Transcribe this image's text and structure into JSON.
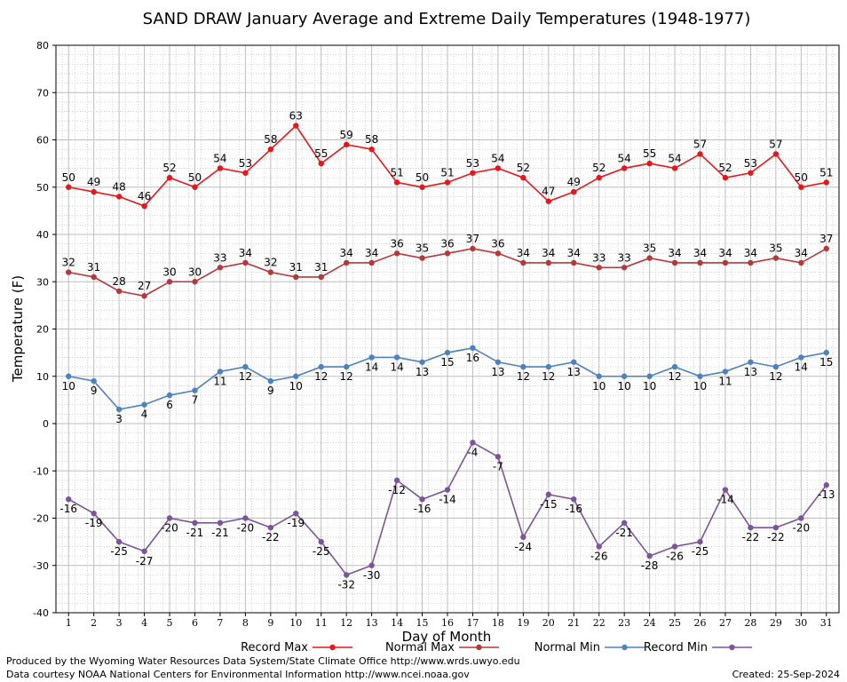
{
  "chart_data": {
    "type": "line",
    "title": "SAND DRAW January Average and Extreme Daily Temperatures (1948-1977)",
    "xlabel": "Day of Month",
    "ylabel": "Temperature (F)",
    "ylim": [
      -40,
      80
    ],
    "yticks": [
      -40,
      -30,
      -20,
      -10,
      0,
      10,
      20,
      30,
      40,
      50,
      60,
      70,
      80
    ],
    "grid": true,
    "legend_position": "bottom",
    "x": [
      1,
      2,
      3,
      4,
      5,
      6,
      7,
      8,
      9,
      10,
      11,
      12,
      13,
      14,
      15,
      16,
      17,
      18,
      19,
      20,
      21,
      22,
      23,
      24,
      25,
      26,
      27,
      28,
      29,
      30,
      31
    ],
    "series": [
      {
        "name": "Record Max",
        "color": "#e8161b",
        "values": [
          50,
          49,
          48,
          46,
          52,
          50,
          54,
          53,
          58,
          63,
          55,
          59,
          58,
          51,
          50,
          51,
          53,
          54,
          52,
          47,
          49,
          52,
          54,
          55,
          54,
          57,
          52,
          53,
          57,
          50,
          51
        ]
      },
      {
        "name": "Normal Max",
        "color": "#b5393a",
        "values": [
          32,
          31,
          28,
          27,
          30,
          30,
          33,
          34,
          32,
          31,
          31,
          34,
          34,
          36,
          35,
          36,
          37,
          36,
          34,
          34,
          34,
          33,
          33,
          35,
          34,
          34,
          34,
          34,
          35,
          34,
          37
        ]
      },
      {
        "name": "Normal Min",
        "color": "#4b82bf",
        "values": [
          10,
          9,
          3,
          4,
          6,
          7,
          11,
          12,
          9,
          10,
          12,
          12,
          14,
          14,
          13,
          15,
          16,
          13,
          12,
          12,
          13,
          10,
          10,
          10,
          12,
          10,
          11,
          13,
          12,
          14,
          15
        ]
      },
      {
        "name": "Record Min",
        "color": "#7c549b",
        "values": [
          -16,
          -19,
          -25,
          -27,
          -20,
          -21,
          -21,
          -20,
          -22,
          -19,
          -25,
          -32,
          -30,
          -12,
          -16,
          -14,
          -4,
          -7,
          -24,
          -15,
          -16,
          -26,
          -21,
          -28,
          -26,
          -25,
          -14,
          -22,
          -22,
          -20,
          -13
        ]
      }
    ]
  },
  "footer": {
    "produced_by": "Produced by the Wyoming Water Resources Data System/State Climate Office http://www.wrds.uwyo.edu",
    "courtesy": "Data courtesy NOAA National Centers for Environmental Information http://www.ncei.noaa.gov",
    "created": "Created:  25-Sep-2024"
  }
}
